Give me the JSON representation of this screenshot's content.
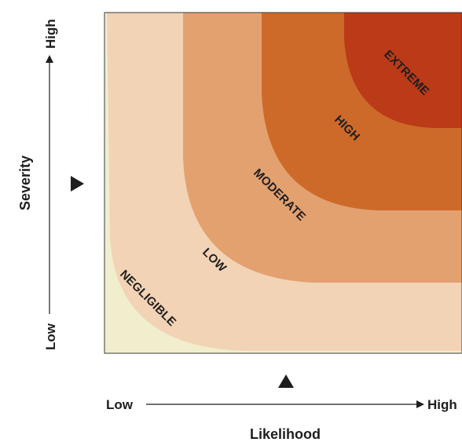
{
  "zones": [
    {
      "label": "NEGLIGIBLE",
      "color": "#f0eecd"
    },
    {
      "label": "LOW",
      "color": "#f2d3b5"
    },
    {
      "label": "MODERATE",
      "color": "#e3a170"
    },
    {
      "label": "HIGH",
      "color": "#cd6a2a"
    },
    {
      "label": "EXTREME",
      "color": "#bb3a18"
    }
  ],
  "x_axis": {
    "title": "Likelihood",
    "low": "Low",
    "high": "High"
  },
  "y_axis": {
    "title": "Severity",
    "low": "Low",
    "high": "High"
  },
  "colors": {
    "border": "#3a3a3a",
    "text": "#1e1e1e"
  }
}
